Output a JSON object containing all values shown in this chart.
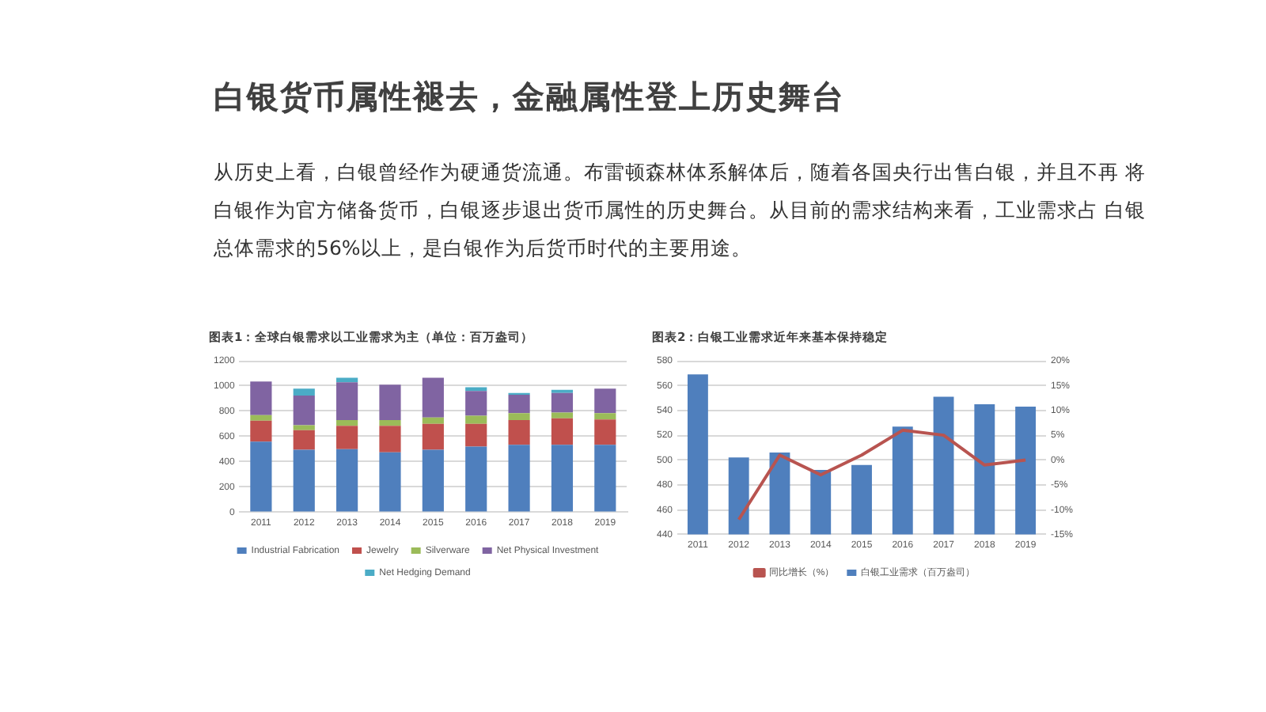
{
  "chart_data": [
    {
      "type": "other",
      "title": "白银货币属性褪去，金融属性登上历史舞台",
      "annotations": [
        "从历史上看，白银曾经作为硬通货流通。布雷顿森林体系解体后，随着各国央行出售白银，并且不再  将白银作为官方储备货币，白银逐步退出货币属性的历史舞台。从目前的需求结构来看，工业需求占 白银总体需求的56%以上，是白银作为后货币时代的主要用途。"
      ]
    },
    {
      "type": "bar",
      "stacked": true,
      "title": "图表1：全球白银需求以工业需求为主（单位：百万盎司）",
      "categories": [
        "2011",
        "2012",
        "2013",
        "2014",
        "2015",
        "2016",
        "2017",
        "2018",
        "2019"
      ],
      "series": [
        {
          "name": "Industrial Fabrication",
          "color": "#4f7fbd",
          "values": [
            560,
            495,
            500,
            475,
            495,
            520,
            535,
            535,
            535
          ]
        },
        {
          "name": "Jewelry",
          "color": "#c0504d",
          "values": [
            165,
            155,
            185,
            210,
            205,
            180,
            195,
            210,
            200
          ]
        },
        {
          "name": "Silverware",
          "color": "#9bbb59",
          "values": [
            45,
            40,
            45,
            45,
            50,
            65,
            55,
            45,
            50
          ]
        },
        {
          "name": "Net Physical Investment",
          "color": "#8064a2",
          "values": [
            265,
            235,
            300,
            280,
            315,
            195,
            145,
            155,
            195
          ]
        },
        {
          "name": "Net Hedging Demand",
          "color": "#4bacc6",
          "values": [
            null,
            55,
            35,
            null,
            null,
            30,
            15,
            25,
            null
          ]
        }
      ],
      "ylim": [
        0,
        1200
      ],
      "yticks": [
        0,
        200,
        400,
        600,
        800,
        1000,
        1200
      ],
      "grid": "y",
      "legend": "bottom"
    },
    {
      "type": "bar",
      "title": "图表2：白银工业需求近年来基本保持稳定",
      "categories": [
        "2011",
        "2012",
        "2013",
        "2014",
        "2015",
        "2016",
        "2017",
        "2018",
        "2019"
      ],
      "series": [
        {
          "name": "白银工业需求（百万盎司）",
          "color": "#4f7fbd",
          "values": [
            569,
            502,
            506,
            492,
            496,
            527,
            551,
            545,
            543
          ]
        },
        {
          "name": "同比增长（%）",
          "type": "line",
          "axis": "y2",
          "color": "#b85450",
          "values": [
            null,
            -12,
            1,
            -3,
            1,
            6,
            5,
            -1,
            0
          ]
        }
      ],
      "ylim": [
        440,
        580
      ],
      "yticks": [
        440,
        460,
        480,
        500,
        520,
        540,
        560,
        580
      ],
      "y2lim": [
        -15,
        20
      ],
      "y2ticks": [
        {
          "value": -15,
          "label": "-15%"
        },
        {
          "value": -10,
          "label": "-10%"
        },
        {
          "value": -5,
          "label": "-5%"
        },
        {
          "value": 0,
          "label": "0%"
        },
        {
          "value": 5,
          "label": "5%"
        },
        {
          "value": 10,
          "label": "10%"
        },
        {
          "value": 15,
          "label": "15%"
        },
        {
          "value": 20,
          "label": "20%"
        }
      ],
      "grid": "y",
      "legend": "bottom"
    }
  ]
}
